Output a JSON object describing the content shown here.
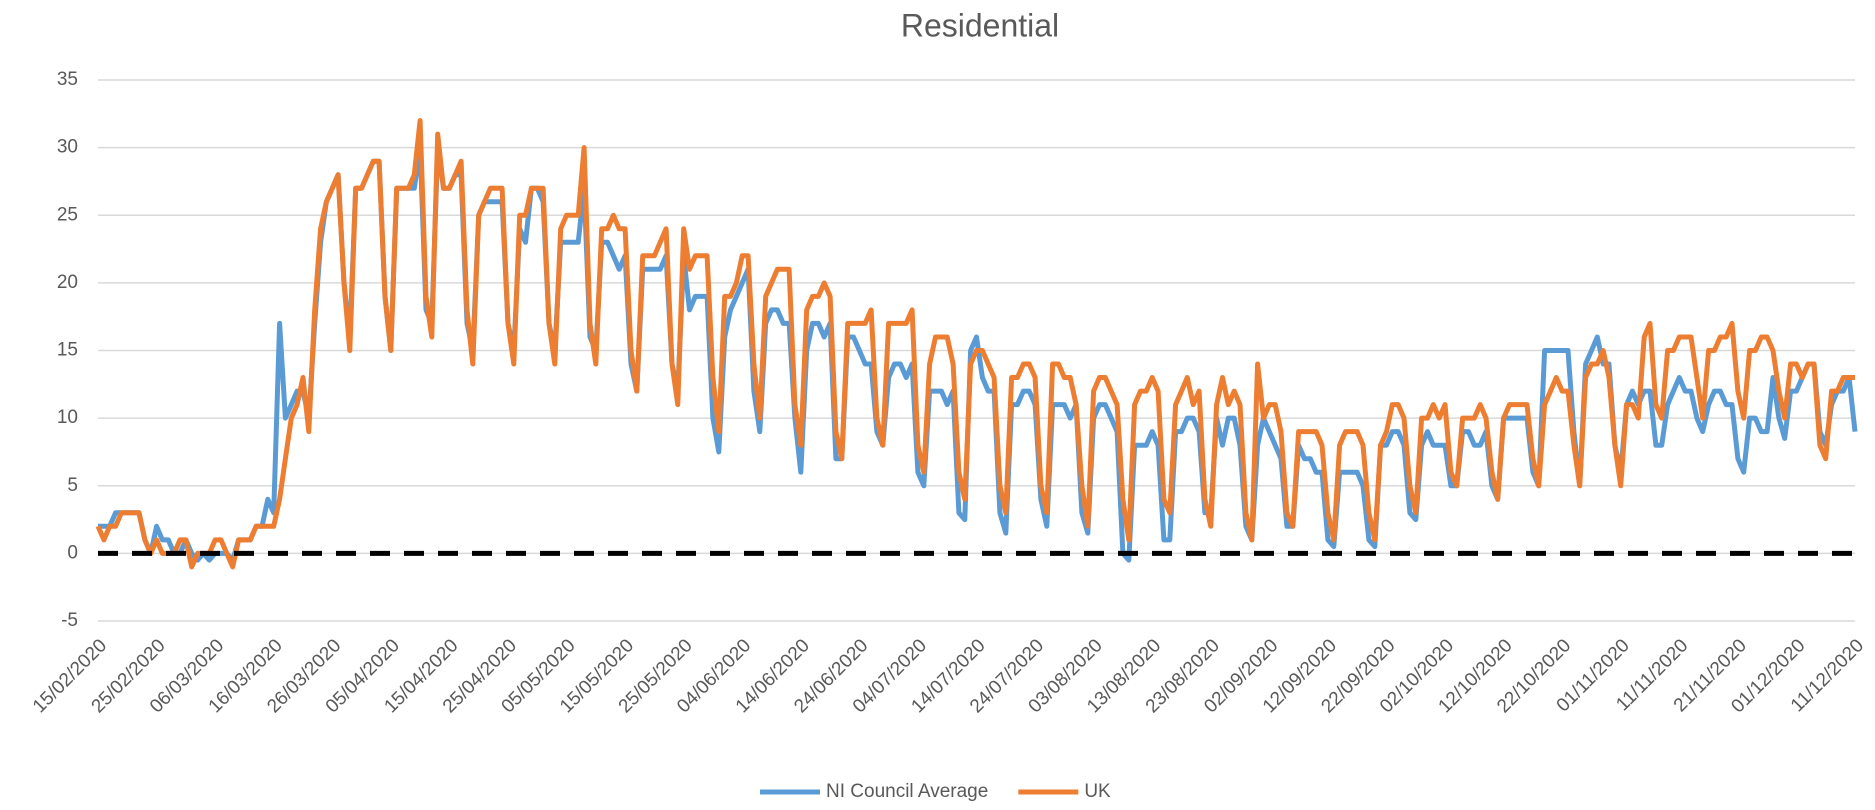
{
  "chart_data": {
    "type": "line",
    "title": "Residential",
    "categories": [
      "15/02/2020",
      null,
      null,
      null,
      null,
      null,
      null,
      null,
      null,
      null,
      "25/02/2020",
      null,
      null,
      null,
      null,
      null,
      null,
      null,
      null,
      null,
      "06/03/2020",
      null,
      null,
      null,
      null,
      null,
      null,
      null,
      null,
      null,
      "16/03/2020",
      null,
      null,
      null,
      null,
      null,
      null,
      null,
      null,
      null,
      "26/03/2020",
      null,
      null,
      null,
      null,
      null,
      null,
      null,
      null,
      null,
      "05/04/2020",
      null,
      null,
      null,
      null,
      null,
      null,
      null,
      null,
      null,
      "15/04/2020",
      null,
      null,
      null,
      null,
      null,
      null,
      null,
      null,
      null,
      "25/04/2020",
      null,
      null,
      null,
      null,
      null,
      null,
      null,
      null,
      null,
      "05/05/2020",
      null,
      null,
      null,
      null,
      null,
      null,
      null,
      null,
      null,
      "15/05/2020",
      null,
      null,
      null,
      null,
      null,
      null,
      null,
      null,
      null,
      "25/05/2020",
      null,
      null,
      null,
      null,
      null,
      null,
      null,
      null,
      null,
      "04/06/2020",
      null,
      null,
      null,
      null,
      null,
      null,
      null,
      null,
      null,
      "14/06/2020",
      null,
      null,
      null,
      null,
      null,
      null,
      null,
      null,
      null,
      "24/06/2020",
      null,
      null,
      null,
      null,
      null,
      null,
      null,
      null,
      null,
      "04/07/2020",
      null,
      null,
      null,
      null,
      null,
      null,
      null,
      null,
      null,
      "14/07/2020",
      null,
      null,
      null,
      null,
      null,
      null,
      null,
      null,
      null,
      "24/07/2020",
      null,
      null,
      null,
      null,
      null,
      null,
      null,
      null,
      null,
      "03/08/2020",
      null,
      null,
      null,
      null,
      null,
      null,
      null,
      null,
      null,
      "13/08/2020",
      null,
      null,
      null,
      null,
      null,
      null,
      null,
      null,
      null,
      "23/08/2020",
      null,
      null,
      null,
      null,
      null,
      null,
      null,
      null,
      null,
      "02/09/2020",
      null,
      null,
      null,
      null,
      null,
      null,
      null,
      null,
      null,
      "12/09/2020",
      null,
      null,
      null,
      null,
      null,
      null,
      null,
      null,
      null,
      "22/09/2020",
      null,
      null,
      null,
      null,
      null,
      null,
      null,
      null,
      null,
      "02/10/2020",
      null,
      null,
      null,
      null,
      null,
      null,
      null,
      null,
      null,
      "12/10/2020",
      null,
      null,
      null,
      null,
      null,
      null,
      null,
      null,
      null,
      "22/10/2020",
      null,
      null,
      null,
      null,
      null,
      null,
      null,
      null,
      null,
      "01/11/2020",
      null,
      null,
      null,
      null,
      null,
      null,
      null,
      null,
      null,
      "11/11/2020",
      null,
      null,
      null,
      null,
      null,
      null,
      null,
      null,
      null,
      "21/11/2020",
      null,
      null,
      null,
      null,
      null,
      null,
      null,
      null,
      null,
      "01/12/2020",
      null,
      null,
      null,
      null,
      null,
      null,
      null,
      null,
      null,
      "11/12/2020"
    ],
    "series": [
      {
        "name": "NI Council Average",
        "color": "#5b9bd5",
        "values": [
          2,
          2,
          2,
          3,
          3,
          3,
          3,
          3,
          1,
          0,
          2,
          1,
          1,
          0,
          0,
          1,
          0,
          -0.5,
          0,
          -0.5,
          0,
          0,
          0,
          -0.5,
          1,
          1,
          1,
          2,
          2,
          4,
          3,
          17,
          10,
          11,
          12,
          12,
          10,
          17,
          23,
          26,
          27,
          28,
          20,
          16,
          27,
          27,
          28,
          29,
          29,
          19,
          15,
          27,
          27,
          27,
          27,
          30,
          18,
          17,
          30,
          27,
          27,
          28,
          28,
          17,
          15,
          25,
          26,
          26,
          26,
          26,
          17,
          15,
          24,
          23,
          27,
          27,
          26,
          17,
          15,
          23,
          23,
          23,
          23,
          27,
          16,
          15,
          23,
          23,
          22,
          21,
          22,
          14,
          12,
          21,
          21,
          21,
          21,
          22,
          14,
          12,
          22,
          18,
          19,
          19,
          19,
          10,
          7.5,
          16,
          18,
          19,
          20,
          21,
          12,
          9,
          17,
          18,
          18,
          17,
          17,
          10,
          6,
          15,
          17,
          17,
          16,
          17,
          7,
          7,
          16,
          16,
          15,
          14,
          14,
          9,
          8,
          13,
          14,
          14,
          13,
          14,
          6,
          5,
          12,
          12,
          12,
          11,
          12,
          3,
          2.5,
          15,
          16,
          13,
          12,
          12,
          3,
          1.5,
          11,
          11,
          12,
          12,
          11,
          4,
          2,
          11,
          11,
          11,
          10,
          11,
          3,
          1.5,
          10,
          11,
          11,
          10,
          9,
          0,
          -0.5,
          8,
          8,
          8,
          9,
          8,
          1,
          1,
          9,
          9,
          10,
          10,
          9,
          3,
          3,
          10,
          8,
          10,
          10,
          8,
          2,
          1,
          8,
          10,
          9,
          8,
          7,
          2,
          2,
          8,
          7,
          7,
          6,
          6,
          1,
          0.5,
          6,
          6,
          6,
          6,
          5,
          1,
          0.5,
          8,
          8,
          9,
          9,
          8,
          3,
          2.5,
          8,
          9,
          8,
          8,
          8,
          5,
          5,
          9,
          9,
          8,
          8,
          9,
          5,
          4,
          10,
          10,
          10,
          10,
          10,
          6,
          5,
          15,
          15,
          15,
          15,
          15,
          9,
          5,
          14,
          15,
          16,
          14,
          14,
          8,
          6,
          11,
          12,
          11,
          12,
          12,
          8,
          8,
          11,
          12,
          13,
          12,
          12,
          10,
          9,
          11,
          12,
          12,
          11,
          11,
          7,
          6,
          10,
          10,
          9,
          9,
          13,
          10,
          8.5,
          12,
          12,
          13,
          14,
          14,
          9,
          8,
          11,
          12,
          12,
          13,
          9
        ]
      },
      {
        "name": "UK",
        "color": "#ed7d31",
        "values": [
          2,
          1,
          2,
          2,
          3,
          3,
          3,
          3,
          1,
          0,
          1,
          0,
          0,
          0,
          1,
          1,
          -1,
          0,
          0,
          0,
          1,
          1,
          0,
          -1,
          1,
          1,
          1,
          2,
          2,
          2,
          2,
          4,
          7,
          10,
          11,
          13,
          9,
          18,
          24,
          26,
          27,
          28,
          20,
          15,
          27,
          27,
          28,
          29,
          29,
          19,
          15,
          27,
          27,
          27,
          28,
          32,
          19,
          16,
          31,
          27,
          27,
          28,
          29,
          18,
          14,
          25,
          26,
          27,
          27,
          27,
          17,
          14,
          25,
          25,
          27,
          27,
          27,
          17,
          14,
          24,
          25,
          25,
          25,
          30,
          17,
          14,
          24,
          24,
          25,
          24,
          24,
          15,
          12,
          22,
          22,
          22,
          23,
          24,
          14,
          11,
          24,
          21,
          22,
          22,
          22,
          13,
          9,
          19,
          19,
          20,
          22,
          22,
          14,
          10,
          19,
          20,
          21,
          21,
          21,
          11,
          8,
          18,
          19,
          19,
          20,
          19,
          9,
          7,
          17,
          17,
          17,
          17,
          18,
          10,
          8,
          17,
          17,
          17,
          17,
          18,
          8,
          6,
          14,
          16,
          16,
          16,
          14,
          6,
          4,
          14,
          15,
          15,
          14,
          13,
          5,
          3,
          13,
          13,
          14,
          14,
          13,
          5,
          3,
          14,
          14,
          13,
          13,
          11,
          5,
          2,
          12,
          13,
          13,
          12,
          11,
          4,
          1,
          11,
          12,
          12,
          13,
          12,
          4,
          3,
          11,
          12,
          13,
          11,
          12,
          4,
          2,
          11,
          13,
          11,
          12,
          11,
          3,
          1,
          14,
          10,
          11,
          11,
          9,
          3,
          2,
          9,
          9,
          9,
          9,
          8,
          3,
          1,
          8,
          9,
          9,
          9,
          8,
          3,
          1,
          8,
          9,
          11,
          11,
          10,
          5,
          3,
          10,
          10,
          11,
          10,
          11,
          6,
          5,
          10,
          10,
          10,
          11,
          10,
          6,
          4,
          10,
          11,
          11,
          11,
          11,
          7,
          5,
          11,
          12,
          13,
          12,
          12,
          8,
          5,
          13,
          14,
          14,
          15,
          13,
          8,
          5,
          11,
          11,
          10,
          16,
          17,
          11,
          10,
          15,
          15,
          16,
          16,
          16,
          13,
          10,
          15,
          15,
          16,
          16,
          17,
          12,
          10,
          15,
          15,
          16,
          16,
          15,
          12,
          10,
          14,
          14,
          13,
          14,
          14,
          8,
          7,
          12,
          12,
          13,
          13,
          13
        ]
      }
    ],
    "ylim": [
      -5,
      35
    ],
    "yticks": [
      -5,
      0,
      5,
      10,
      15,
      20,
      25,
      30,
      35
    ],
    "grid": true,
    "zero_line": true,
    "legend": "bottom"
  }
}
